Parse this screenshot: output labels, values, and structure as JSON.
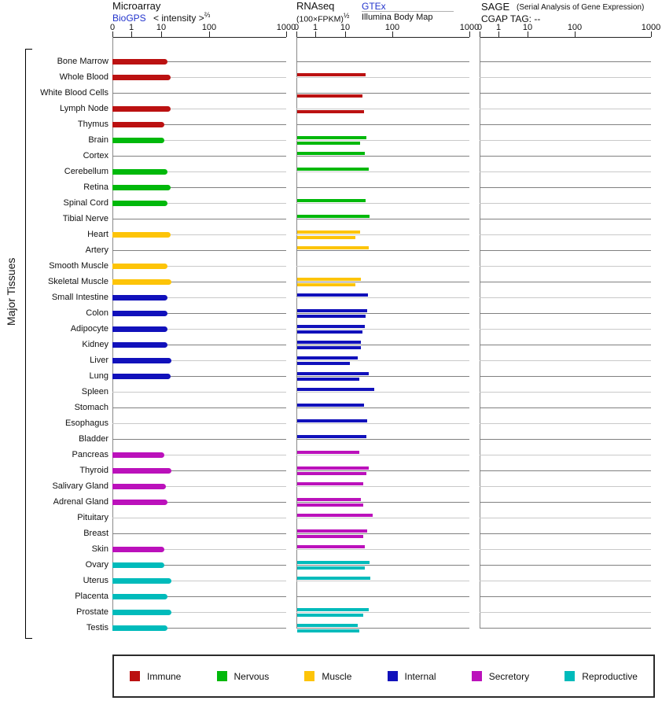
{
  "header": {
    "microarray": {
      "title": "Microarray",
      "link": "BioGPS",
      "measure": "< intensity >",
      "exponent": "⅔"
    },
    "rnaseq": {
      "title": "RNAseq",
      "measure": "(100×FPKM)",
      "exponent": "½",
      "link": "GTEx",
      "source2": "Illumina Body Map"
    },
    "sage": {
      "title": "SAGE",
      "note": "(Serial Analysis of Gene Expression)",
      "tag_line": "CGAP TAG:  --"
    }
  },
  "axis": {
    "ticks": [
      0,
      1,
      10,
      100,
      1000
    ]
  },
  "side_label": "Major Tissues",
  "legend": {
    "items": [
      {
        "label": "Immune",
        "color": "#bb1111"
      },
      {
        "label": "Nervous",
        "color": "#00b80b"
      },
      {
        "label": "Muscle",
        "color": "#fdc408"
      },
      {
        "label": "Internal",
        "color": "#1111bb"
      },
      {
        "label": "Secretory",
        "color": "#bb11bb"
      },
      {
        "label": "Reproductive",
        "color": "#00bbbb"
      }
    ]
  },
  "chart_data": {
    "type": "bar",
    "orientation": "horizontal",
    "title": "Gene expression in major tissues",
    "panels": [
      {
        "id": "microarray",
        "label": "Microarray — BioGPS < intensity >^(2/3)",
        "series": [
          "BioGPS"
        ]
      },
      {
        "id": "rnaseq",
        "label": "RNAseq — (100×FPKM)^(1/2)",
        "series": [
          "GTEx",
          "Illumina Body Map"
        ]
      },
      {
        "id": "sage",
        "label": "SAGE (Serial Analysis of Gene Expression) — CGAP TAG: --",
        "series": []
      }
    ],
    "x_axis": {
      "ticks": [
        0,
        1,
        10,
        100,
        1000
      ],
      "scale": "compressed log, decade pixel spans 24/38/61/98",
      "range": [
        0,
        1000
      ]
    },
    "legend_position": "bottom",
    "grid": "horizontal row lines, alternating dark/light gray",
    "tissues": [
      {
        "name": "Bone Marrow",
        "category": "Immune",
        "microarray": 13,
        "gtex": null,
        "illumina": null
      },
      {
        "name": "Whole Blood",
        "category": "Immune",
        "microarray": 15,
        "gtex": 26,
        "illumina": null
      },
      {
        "name": "White Blood Cells",
        "category": "Immune",
        "microarray": null,
        "gtex": null,
        "illumina": 22
      },
      {
        "name": "Lymph Node",
        "category": "Immune",
        "microarray": 15,
        "gtex": null,
        "illumina": 24
      },
      {
        "name": "Thymus",
        "category": "Immune",
        "microarray": 11,
        "gtex": null,
        "illumina": null
      },
      {
        "name": "Brain",
        "category": "Nervous",
        "microarray": 11,
        "gtex": 27,
        "illumina": 20
      },
      {
        "name": "Cortex",
        "category": "Nervous",
        "microarray": null,
        "gtex": 25,
        "illumina": null
      },
      {
        "name": "Cerebellum",
        "category": "Nervous",
        "microarray": 13,
        "gtex": 30,
        "illumina": null
      },
      {
        "name": "Retina",
        "category": "Nervous",
        "microarray": 15,
        "gtex": null,
        "illumina": null
      },
      {
        "name": "Spinal Cord",
        "category": "Nervous",
        "microarray": 13,
        "gtex": 26,
        "illumina": null
      },
      {
        "name": "Tibial Nerve",
        "category": "Nervous",
        "microarray": null,
        "gtex": 31,
        "illumina": null
      },
      {
        "name": "Heart",
        "category": "Muscle",
        "microarray": 15,
        "gtex": 20,
        "illumina": 16
      },
      {
        "name": "Artery",
        "category": "Muscle",
        "microarray": null,
        "gtex": 30,
        "illumina": null
      },
      {
        "name": "Smooth Muscle",
        "category": "Muscle",
        "microarray": 13,
        "gtex": null,
        "illumina": null
      },
      {
        "name": "Skeletal Muscle",
        "category": "Muscle",
        "microarray": 16,
        "gtex": 21,
        "illumina": 16
      },
      {
        "name": "Small Intestine",
        "category": "Internal",
        "microarray": 13,
        "gtex": 29,
        "illumina": null
      },
      {
        "name": "Colon",
        "category": "Internal",
        "microarray": 13,
        "gtex": 28,
        "illumina": 26
      },
      {
        "name": "Adipocyte",
        "category": "Internal",
        "microarray": 13,
        "gtex": 25,
        "illumina": 22
      },
      {
        "name": "Kidney",
        "category": "Internal",
        "microarray": 13,
        "gtex": 21,
        "illumina": 21
      },
      {
        "name": "Liver",
        "category": "Internal",
        "microarray": 16,
        "gtex": 18,
        "illumina": 12
      },
      {
        "name": "Lung",
        "category": "Internal",
        "microarray": 15,
        "gtex": 30,
        "illumina": 19
      },
      {
        "name": "Spleen",
        "category": "Internal",
        "microarray": null,
        "gtex": 39,
        "illumina": null
      },
      {
        "name": "Stomach",
        "category": "Internal",
        "microarray": null,
        "gtex": 24,
        "illumina": null
      },
      {
        "name": "Esophagus",
        "category": "Internal",
        "microarray": null,
        "gtex": 28,
        "illumina": null
      },
      {
        "name": "Bladder",
        "category": "Internal",
        "microarray": null,
        "gtex": 27,
        "illumina": null
      },
      {
        "name": "Pancreas",
        "category": "Secretory",
        "microarray": 11,
        "gtex": 19,
        "illumina": null
      },
      {
        "name": "Thyroid",
        "category": "Secretory",
        "microarray": 16,
        "gtex": 30,
        "illumina": 27
      },
      {
        "name": "Salivary Gland",
        "category": "Secretory",
        "microarray": 12,
        "gtex": 23,
        "illumina": null
      },
      {
        "name": "Adrenal Gland",
        "category": "Secretory",
        "microarray": 13,
        "gtex": 21,
        "illumina": 23
      },
      {
        "name": "Pituitary",
        "category": "Secretory",
        "microarray": null,
        "gtex": 36,
        "illumina": null
      },
      {
        "name": "Breast",
        "category": "Secretory",
        "microarray": null,
        "gtex": 28,
        "illumina": 23
      },
      {
        "name": "Skin",
        "category": "Secretory",
        "microarray": 11,
        "gtex": 25,
        "illumina": null
      },
      {
        "name": "Ovary",
        "category": "Reproductive",
        "microarray": 11,
        "gtex": 31,
        "illumina": 25
      },
      {
        "name": "Uterus",
        "category": "Reproductive",
        "microarray": 16,
        "gtex": 33,
        "illumina": null
      },
      {
        "name": "Placenta",
        "category": "Reproductive",
        "microarray": 13,
        "gtex": null,
        "illumina": null
      },
      {
        "name": "Prostate",
        "category": "Reproductive",
        "microarray": 16,
        "gtex": 30,
        "illumina": 23
      },
      {
        "name": "Testis",
        "category": "Reproductive",
        "microarray": 13,
        "gtex": 18,
        "illumina": 19
      }
    ]
  }
}
